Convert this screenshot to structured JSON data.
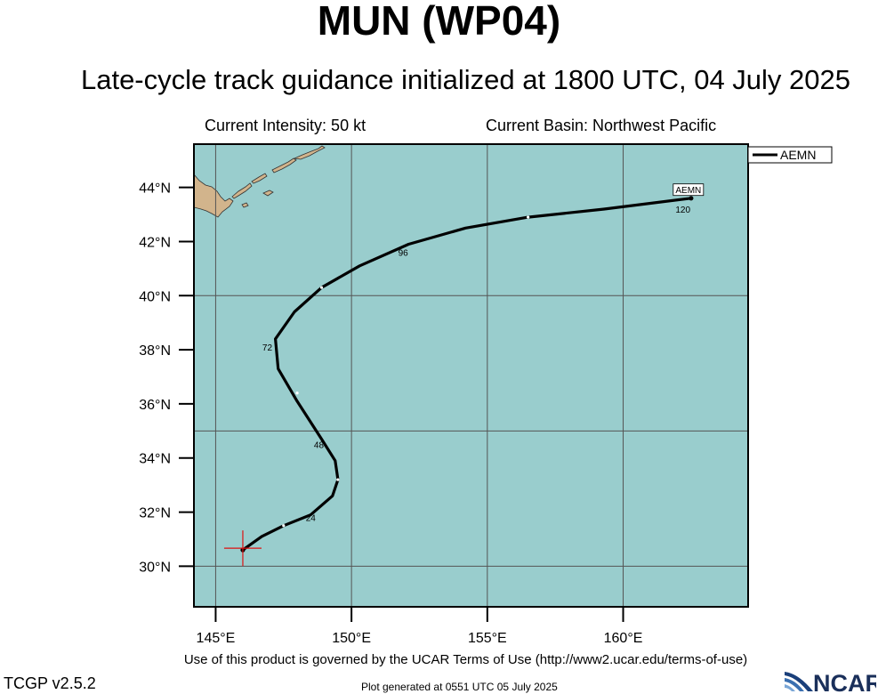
{
  "header": {
    "title": "MUN (WP04)",
    "subtitle": "Late-cycle track guidance initialized at 1800 UTC, 04 July 2025"
  },
  "info": {
    "intensity": "Current Intensity: 50 kt",
    "basin": "Current Basin: Northwest Pacific"
  },
  "map": {
    "lon_range": [
      144.2,
      164.6
    ],
    "lat_range": [
      28.5,
      45.6
    ],
    "lat_ticks": [
      {
        "value": 30,
        "label": "30°N"
      },
      {
        "value": 32,
        "label": "32°N"
      },
      {
        "value": 34,
        "label": "34°N"
      },
      {
        "value": 36,
        "label": "36°N"
      },
      {
        "value": 38,
        "label": "38°N"
      },
      {
        "value": 40,
        "label": "40°N"
      },
      {
        "value": 42,
        "label": "42°N"
      },
      {
        "value": 44,
        "label": "44°N"
      }
    ],
    "lon_ticks": [
      {
        "value": 145,
        "label": "145°E"
      },
      {
        "value": 150,
        "label": "150°E"
      },
      {
        "value": 155,
        "label": "155°E"
      },
      {
        "value": 160,
        "label": "160°E"
      }
    ],
    "grid_lons": [
      145,
      150,
      155,
      160
    ],
    "grid_lats": [
      30,
      35,
      40
    ],
    "ocean_color": "#99cdcd",
    "land_color": "#d2b48c",
    "current_position": {
      "lon": 146.0,
      "lat": 30.6
    },
    "legend": {
      "label": "AEMN",
      "placement": "top-right"
    }
  },
  "chart_data": {
    "type": "line",
    "series": [
      {
        "name": "AEMN",
        "color": "#000000",
        "points": [
          {
            "lon": 146.0,
            "lat": 30.6
          },
          {
            "lon": 146.7,
            "lat": 31.1
          },
          {
            "lon": 147.5,
            "lat": 31.5
          },
          {
            "lon": 148.5,
            "lat": 31.9
          },
          {
            "lon": 149.3,
            "lat": 32.6
          },
          {
            "lon": 149.5,
            "lat": 33.2
          },
          {
            "lon": 149.4,
            "lat": 33.9
          },
          {
            "lon": 148.9,
            "lat": 34.7
          },
          {
            "lon": 148.0,
            "lat": 36.1
          },
          {
            "lon": 147.3,
            "lat": 37.3
          },
          {
            "lon": 147.2,
            "lat": 38.4
          },
          {
            "lon": 147.9,
            "lat": 39.4
          },
          {
            "lon": 148.9,
            "lat": 40.3
          },
          {
            "lon": 150.3,
            "lat": 41.1
          },
          {
            "lon": 152.1,
            "lat": 41.9
          },
          {
            "lon": 154.2,
            "lat": 42.5
          },
          {
            "lon": 156.5,
            "lat": 42.9
          },
          {
            "lon": 159.3,
            "lat": 43.2
          },
          {
            "lon": 162.5,
            "lat": 43.6
          }
        ],
        "tick_points": [
          {
            "lon": 147.5,
            "lat": 31.5
          },
          {
            "lon": 149.5,
            "lat": 33.2
          },
          {
            "lon": 148.0,
            "lat": 36.4
          },
          {
            "lon": 148.9,
            "lat": 40.3
          },
          {
            "lon": 156.5,
            "lat": 42.9
          }
        ],
        "hour_labels": [
          {
            "text": "24",
            "lon": 148.5,
            "lat": 31.8
          },
          {
            "text": "48",
            "lon": 148.8,
            "lat": 34.5
          },
          {
            "text": "72",
            "lon": 146.9,
            "lat": 38.1
          },
          {
            "text": "96",
            "lon": 151.9,
            "lat": 41.6
          },
          {
            "text": "120",
            "lon": 162.2,
            "lat": 43.2
          }
        ],
        "end_label": {
          "text": "AEMN",
          "lon": 162.4,
          "lat": 43.9
        }
      }
    ]
  },
  "footer": {
    "terms": "Use of this product is governed by the UCAR Terms of Use (http://www2.ucar.edu/terms-of-use)",
    "version": "TCGP v2.5.2",
    "generated": "Plot generated at 0551 UTC   05 July 2025",
    "logo_text": "NCAR"
  }
}
